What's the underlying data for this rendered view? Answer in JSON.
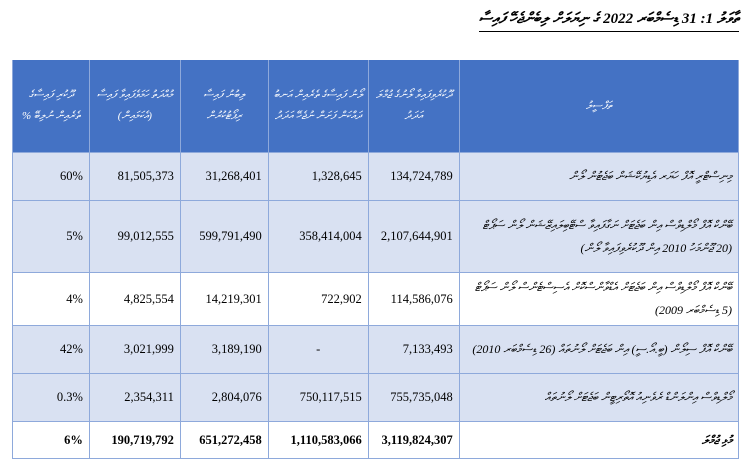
{
  "title": "ތާވަލު 1: 31 ޑިސެމްބަރ 2022 ގެ ނިޔަލަށް ލިބެންޖެހޭ ފައިސާ",
  "colors": {
    "header_bg": "#4472C4",
    "row_shade": "#D9E1F2",
    "border": "#8EA9DB"
  },
  "table": {
    "headers": [
      "ތަފްސީލު",
      "ދޫކުރެވިފައިވާ ލޯނުގެ ޖުމްލަ އަދަދު",
      "ލޯނު ފައިސާގެ ތެރެއިން އަނބު ދައްކަން ފަށަން ނުޖެހޭ އަދަދު",
      "ލިބުނު ފައިސާ ރިޕޯޓުކުރުން",
      "މުއްދަތު ހަމަވެފައިވާ ފައިސާ (އެކަމައިން)",
      "ދޫކުރި ފައިސާގެ ތެރެއިން ނުލިބޭ %"
    ],
    "rows": [
      {
        "desc": "މިނިސްޓްރީ އޮފް ހަޔަރ އެޑިޔުކޭޝަން ބަޖެޓުން ލޯން",
        "c1": "134,724,789",
        "c2": "1,328,645",
        "c3": "31,268,401",
        "c4": "81,505,373",
        "c5": "60%"
      },
      {
        "desc": "ބޭންކް އޮފް މޯލްޑިވްސް އިން ބަޖެޓަށް ނަގާފައިވާ ސްޓޭބިލައިޒޭޝަން ލޯން ސަޕޯޓް (20 ޖޫންމަހު 2010 އިން ދޫކުރެވިފައިވާ ލޯން)",
        "c1": "2,107,644,901",
        "c2": "358,414,004",
        "c3": "599,791,490",
        "c4": "99,012,555",
        "c5": "5%"
      },
      {
        "desc": "ބޭންކް އޮފް މޯލްޑިވްސް އިން ބަޖެޓަށް އެޑްވާންސްކޮށް އެސިސްޓެންސް ލޯން ސަޕޯޓް (5 ޑިސެމްބަރ 2009)",
        "c1": "114,586,076",
        "c2": "722,902",
        "c3": "14,219,301",
        "c4": "4,825,554",
        "c5": "4%"
      },
      {
        "desc": "ބޭންކް އޮފް ސިލޯން (ބީ.އޯ.ސީ) އިން ބަޖެޓަށް ލޯނުތައް (26 ޑިސެމްބަރ 2010)",
        "c1": "7,133,493",
        "c2": "-",
        "c3": "3,189,190",
        "c4": "3,021,999",
        "c5": "42%"
      },
      {
        "desc": "މޯލްޑިވްސް އިންލަންޑް ރެވެނިއު އޮތޯރިޓީން ބަޖެޓަށް ލޯނުތައް",
        "c1": "755,735,048",
        "c2": "750,117,515",
        "c3": "2,804,076",
        "c4": "2,354,311",
        "c5": "0.3%"
      }
    ],
    "total": {
      "desc": "މުޅި ޖުމްލަ",
      "c1": "3,119,824,307",
      "c2": "1,110,583,066",
      "c3": "651,272,458",
      "c4": "190,719,792",
      "c5": "6%"
    }
  }
}
